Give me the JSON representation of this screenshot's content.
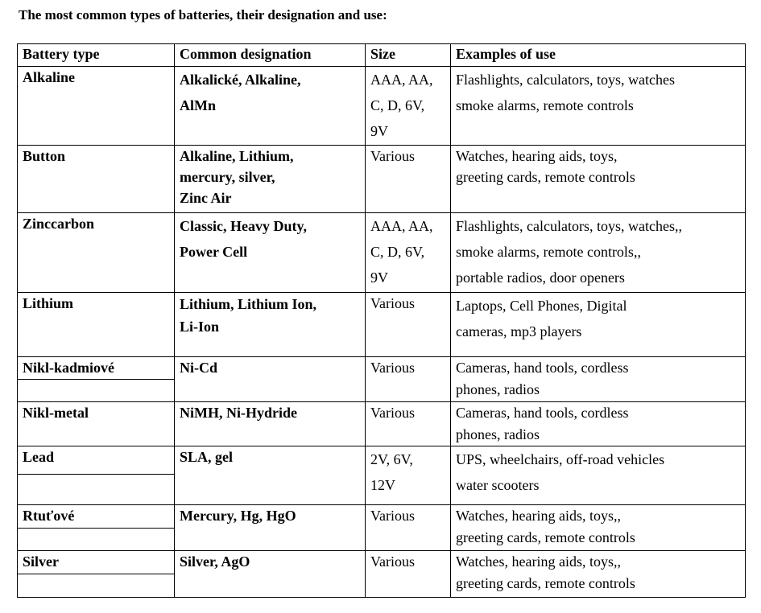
{
  "title": "The most common types of batteries, their designation and use:",
  "table": {
    "headers": [
      "Battery type",
      "Common designation",
      "Size",
      "Examples of use"
    ],
    "rows": [
      {
        "type": "Alkaline",
        "designation": [
          "Alkalické, Alkaline,",
          "AlMn"
        ],
        "size": [
          "AAA, AA,",
          "C, D, 6V,",
          "9V"
        ],
        "uses": [
          "Flashlights, calculators, toys, watches",
          "smoke alarms, remote controls"
        ]
      },
      {
        "type": "Button",
        "designation": [
          "Alkaline, Lithium,",
          "mercury, silver,",
          "Zinc Air"
        ],
        "size": [
          "Various"
        ],
        "uses": [
          "Watches, hearing aids, toys,",
          "greeting cards, remote controls"
        ]
      },
      {
        "type": "Zinccarbon",
        "designation": [
          "Classic, Heavy Duty,",
          "Power Cell"
        ],
        "size": [
          "AAA, AA,",
          "C, D, 6V,",
          "9V"
        ],
        "uses": [
          "Flashlights, calculators, toys, watches,,",
          "smoke alarms, remote controls,,",
          "portable radios, door openers"
        ]
      },
      {
        "type": "Lithium",
        "designation": [
          "Lithium, Lithium Ion,",
          "Li-Ion"
        ],
        "size": [
          "Various"
        ],
        "uses": [
          "Laptops, Cell Phones, Digital",
          "cameras, mp3 players"
        ]
      },
      {
        "type": "Nikl-kadmiové",
        "designation": [
          "Ni-Cd"
        ],
        "size": [
          "Various"
        ],
        "uses": [
          "Cameras, hand tools, cordless",
          "phones, radios"
        ]
      },
      {
        "type": "Nikl-metal",
        "designation": [
          "NiMH, Ni-Hydride"
        ],
        "size": [
          "Various"
        ],
        "uses": [
          "Cameras, hand tools, cordless",
          "phones, radios"
        ]
      },
      {
        "type": "Lead",
        "designation": [
          "SLA, gel"
        ],
        "size": [
          "2V, 6V,",
          "12V"
        ],
        "uses": [
          "UPS, wheelchairs, off-road vehicles",
          "water scooters"
        ]
      },
      {
        "type": "Rtuťové",
        "designation": [
          "Mercury, Hg, HgO"
        ],
        "size": [
          "Various"
        ],
        "uses": [
          "Watches, hearing aids, toys,,",
          "greeting cards, remote controls"
        ]
      },
      {
        "type": "Silver",
        "designation": [
          "Silver, AgO"
        ],
        "size": [
          "Various"
        ],
        "uses": [
          "Watches, hearing aids, toys,,",
          "greeting cards, remote controls"
        ]
      }
    ]
  }
}
